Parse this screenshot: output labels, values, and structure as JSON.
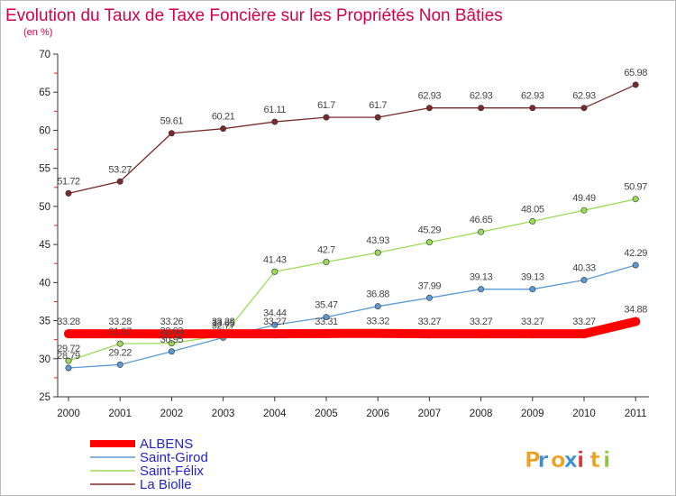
{
  "chart_data": {
    "type": "line",
    "title": "Evolution du Taux de Taxe Foncière sur les Propriétés Non Bâties",
    "subtitle": "(en %)",
    "x": [
      "2000",
      "2001",
      "2002",
      "2003",
      "2004",
      "2005",
      "2006",
      "2007",
      "2008",
      "2009",
      "2010",
      "2011"
    ],
    "ylim": [
      25,
      70
    ],
    "yticks": [
      "25",
      "30",
      "35",
      "40",
      "45",
      "50",
      "55",
      "60",
      "65",
      "70"
    ],
    "grid": false,
    "legend_position": "bottom-left",
    "series": [
      {
        "name": "ALBENS",
        "color": "#ff0000",
        "values": [
          33.28,
          33.28,
          33.26,
          33.28,
          33.27,
          33.31,
          33.32,
          33.27,
          33.27,
          33.27,
          33.27,
          34.88
        ],
        "labels": [
          "33.28",
          "33.28",
          "33.26",
          "33.28",
          "33.27",
          "33.31",
          "33.32",
          "33.27",
          "33.27",
          "33.27",
          "33.27",
          "34.88"
        ]
      },
      {
        "name": "Saint-Girod",
        "color": "#5b9bd5",
        "values": [
          28.79,
          29.22,
          30.95,
          32.77,
          34.44,
          35.47,
          36.88,
          37.99,
          39.13,
          39.13,
          40.33,
          42.29
        ],
        "labels": [
          "28.79",
          "29.22",
          "30.95",
          "32.77",
          "34.44",
          "35.47",
          "36.88",
          "37.99",
          "39.13",
          "39.13",
          "40.33",
          "42.29"
        ]
      },
      {
        "name": "Saint-Félix",
        "color": "#9adb55",
        "values": [
          29.72,
          31.97,
          32.03,
          33.05,
          41.43,
          42.7,
          43.93,
          45.29,
          46.65,
          48.05,
          49.49,
          50.97
        ],
        "labels": [
          "29.72",
          "31.97",
          "32.03",
          "33.05",
          "41.43",
          "42.7",
          "43.93",
          "45.29",
          "46.65",
          "48.05",
          "49.49",
          "50.97"
        ]
      },
      {
        "name": "La Biolle",
        "color": "#7a2a2a",
        "values": [
          51.72,
          53.27,
          59.61,
          60.21,
          61.11,
          61.7,
          61.7,
          62.93,
          62.93,
          62.93,
          62.93,
          65.98
        ],
        "labels": [
          "51.72",
          "53.27",
          "59.61",
          "60.21",
          "61.11",
          "61.7",
          "61.7",
          "62.93",
          "62.93",
          "62.93",
          "62.93",
          "65.98"
        ]
      }
    ]
  },
  "brand": {
    "letters": [
      "P",
      "r",
      "o",
      "x",
      "i",
      "t",
      "i"
    ],
    "colors": [
      "#f0a020",
      "#3a8fd8",
      "#f0a020",
      "#3a8fd8",
      "#e8302a",
      "#f0a020",
      "#8cc63f"
    ]
  }
}
